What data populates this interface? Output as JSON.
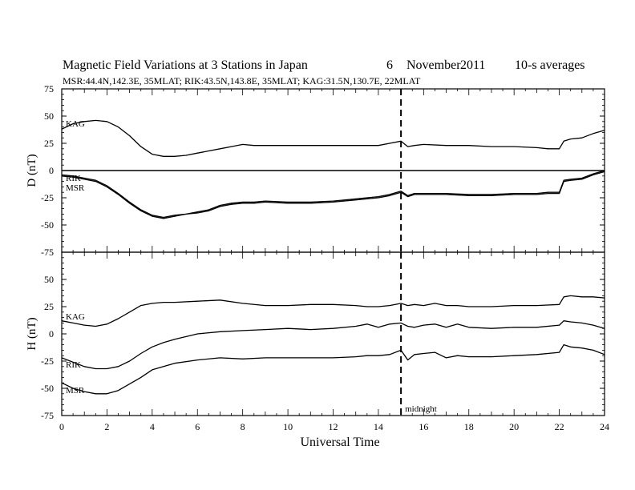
{
  "title": {
    "main": "Magnetic Field Variations at 3 Stations in Japan",
    "day": "6",
    "month": "November",
    "year": "2011",
    "averaging": "10-s averages"
  },
  "subtitle": "MSR:44.4N,142.3E, 35MLAT;   RIK:43.5N,143.8E, 35MLAT;   KAG:31.5N,130.7E, 22MLAT",
  "chart_data": [
    {
      "type": "line",
      "panel": "top",
      "ylabel": "D (nT)",
      "ylim": [
        -75,
        75
      ],
      "yticks": [
        -75,
        -50,
        -25,
        0,
        25,
        50,
        75
      ],
      "xlim": [
        0,
        24
      ],
      "zero_line": true,
      "vline": {
        "x": 15,
        "style": "dashed"
      },
      "series": [
        {
          "name": "KAG",
          "x": [
            0,
            0.5,
            1,
            1.5,
            2,
            2.5,
            3,
            3.5,
            4,
            4.5,
            5,
            5.5,
            6,
            6.5,
            7,
            7.5,
            8,
            8.5,
            9,
            10,
            11,
            12,
            13,
            14,
            14.5,
            15,
            15.3,
            15.6,
            16,
            17,
            18,
            19,
            20,
            21,
            21.5,
            22,
            22.2,
            22.5,
            23,
            23.5,
            24
          ],
          "y": [
            38,
            43,
            45,
            46,
            45,
            40,
            32,
            22,
            15,
            13,
            13,
            14,
            16,
            18,
            20,
            22,
            24,
            23,
            23,
            23,
            23,
            23,
            23,
            23,
            25,
            27,
            22,
            23,
            24,
            23,
            23,
            22,
            22,
            21,
            20,
            20,
            27,
            29,
            30,
            34,
            37
          ]
        },
        {
          "name": "RIK",
          "x": [
            0,
            0.5,
            1,
            1.5,
            2,
            2.5,
            3,
            3.5,
            4,
            4.5,
            5,
            5.5,
            6,
            6.5,
            7,
            7.5,
            8,
            8.5,
            9,
            10,
            11,
            12,
            13,
            14,
            14.5,
            15,
            15.3,
            15.6,
            16,
            17,
            18,
            19,
            20,
            21,
            21.5,
            22,
            22.2,
            22.5,
            23,
            23.5,
            24
          ],
          "y": [
            -5,
            -6,
            -8,
            -10,
            -15,
            -22,
            -30,
            -37,
            -42,
            -44,
            -42,
            -40,
            -39,
            -37,
            -33,
            -31,
            -30,
            -30,
            -29,
            -30,
            -30,
            -29,
            -27,
            -25,
            -23,
            -20,
            -24,
            -22,
            -22,
            -22,
            -23,
            -23,
            -22,
            -22,
            -21,
            -21,
            -10,
            -9,
            -8,
            -4,
            -1
          ]
        },
        {
          "name": "MSR",
          "x": [
            0,
            0.5,
            1,
            1.5,
            2,
            2.5,
            3,
            3.5,
            4,
            4.5,
            5,
            5.5,
            6,
            6.5,
            7,
            7.5,
            8,
            8.5,
            9,
            10,
            11,
            12,
            13,
            14,
            14.5,
            15,
            15.3,
            15.6,
            16,
            17,
            18,
            19,
            20,
            21,
            21.5,
            22,
            22.2,
            22.5,
            23,
            23.5,
            24
          ],
          "y": [
            -4,
            -5,
            -7,
            -9,
            -14,
            -21,
            -29,
            -36,
            -41,
            -43,
            -41,
            -40,
            -38,
            -36,
            -32,
            -30,
            -29,
            -29,
            -28,
            -29,
            -29,
            -28,
            -26,
            -24,
            -22,
            -19,
            -23,
            -21,
            -21,
            -21,
            -22,
            -22,
            -21,
            -21,
            -20,
            -20,
            -9,
            -8,
            -7,
            -3,
            0
          ]
        }
      ]
    },
    {
      "type": "line",
      "panel": "bottom",
      "ylabel": "H (nT)",
      "xlabel": "Universal Time",
      "ylim": [
        -75,
        75
      ],
      "yticks": [
        -75,
        -50,
        -25,
        0,
        25,
        50,
        75
      ],
      "xlim": [
        0,
        24
      ],
      "xticks": [
        0,
        2,
        4,
        6,
        8,
        10,
        12,
        14,
        16,
        18,
        20,
        22,
        24
      ],
      "vline": {
        "x": 15,
        "style": "dashed",
        "label": "midnight"
      },
      "series": [
        {
          "name": "KAG",
          "x": [
            0,
            0.5,
            1,
            1.5,
            2,
            2.5,
            3,
            3.5,
            4,
            4.5,
            5,
            6,
            7,
            8,
            9,
            10,
            11,
            12,
            13,
            13.5,
            14,
            14.5,
            15,
            15.3,
            15.6,
            16,
            16.5,
            17,
            17.5,
            18,
            19,
            20,
            21,
            22,
            22.2,
            22.5,
            23,
            23.5,
            24
          ],
          "y": [
            12,
            10,
            8,
            7,
            9,
            14,
            20,
            26,
            28,
            29,
            29,
            30,
            31,
            28,
            26,
            26,
            27,
            27,
            26,
            25,
            25,
            26,
            28,
            26,
            27,
            26,
            28,
            26,
            26,
            25,
            25,
            26,
            26,
            27,
            34,
            35,
            34,
            34,
            33
          ]
        },
        {
          "name": "RIK",
          "x": [
            0,
            0.5,
            1,
            1.5,
            2,
            2.5,
            3,
            3.5,
            4,
            4.5,
            5,
            6,
            7,
            8,
            9,
            10,
            11,
            12,
            13,
            13.5,
            14,
            14.5,
            15,
            15.3,
            15.6,
            16,
            16.5,
            17,
            17.5,
            18,
            19,
            20,
            21,
            22,
            22.2,
            22.5,
            23,
            23.5,
            24
          ],
          "y": [
            -22,
            -26,
            -30,
            -32,
            -32,
            -30,
            -25,
            -18,
            -12,
            -8,
            -5,
            0,
            2,
            3,
            4,
            5,
            4,
            5,
            7,
            9,
            6,
            9,
            10,
            7,
            6,
            8,
            9,
            6,
            9,
            6,
            5,
            6,
            6,
            8,
            12,
            11,
            10,
            8,
            5
          ]
        },
        {
          "name": "MSR",
          "x": [
            0,
            0.5,
            1,
            1.5,
            2,
            2.5,
            3,
            3.5,
            4,
            4.5,
            5,
            6,
            7,
            8,
            9,
            10,
            11,
            12,
            13,
            13.5,
            14,
            14.5,
            15,
            15.3,
            15.6,
            16,
            16.5,
            17,
            17.5,
            18,
            19,
            20,
            21,
            22,
            22.2,
            22.5,
            23,
            23.5,
            24
          ],
          "y": [
            -45,
            -50,
            -53,
            -55,
            -55,
            -52,
            -46,
            -40,
            -33,
            -30,
            -27,
            -24,
            -22,
            -23,
            -22,
            -22,
            -22,
            -22,
            -21,
            -20,
            -20,
            -19,
            -15,
            -24,
            -19,
            -18,
            -17,
            -22,
            -20,
            -21,
            -21,
            -20,
            -19,
            -17,
            -10,
            -12,
            -13,
            -15,
            -19
          ]
        }
      ]
    }
  ]
}
